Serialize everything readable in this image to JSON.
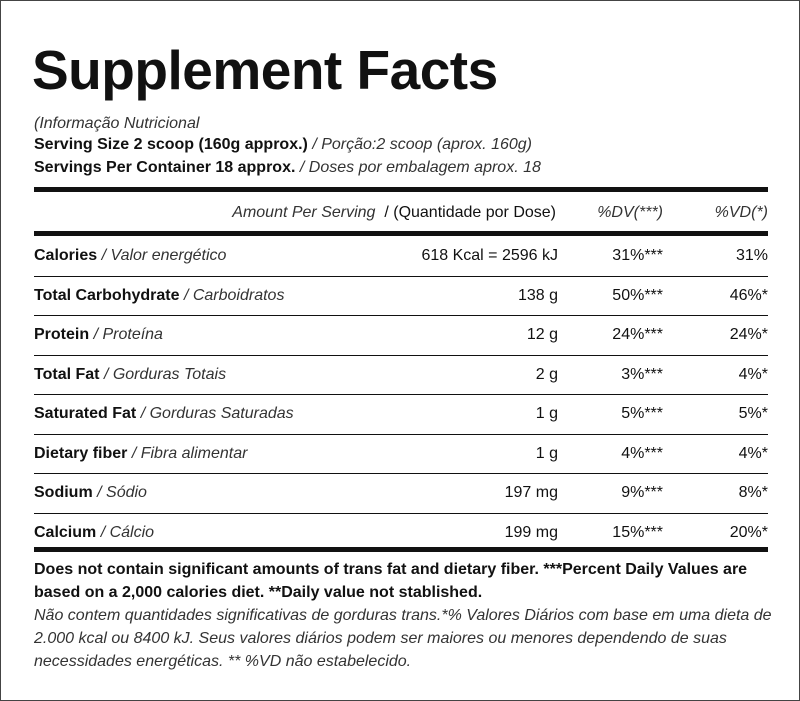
{
  "title": "Supplement Facts",
  "subtitle": "(Informação Nutricional",
  "serving_size": {
    "label": "Serving Size 2 scoop (160g approx.)",
    "translation": "/ Porção:2 scoop (aprox. 160g)"
  },
  "servings_per_container": {
    "label": "Servings Per Container 18 approx.",
    "translation": "/ Doses por embalagem aprox. 18"
  },
  "header": {
    "amount": "Amount Per Serving",
    "amount_pt": "/ (Quantidade por Dose)",
    "dv": "%DV(***)",
    "vd": "%VD(*)"
  },
  "rows": [
    {
      "name": "Calories",
      "name_pt": "/ Valor energético",
      "amount": "618 Kcal = 2596 kJ",
      "dv": "31%***",
      "vd": "31%"
    },
    {
      "name": "Total Carbohydrate",
      "name_pt": "/ Carboidratos",
      "amount": "138 g",
      "dv": "50%***",
      "vd": "46%*"
    },
    {
      "name": "Protein",
      "name_pt": "/ Proteína",
      "amount": "12 g",
      "dv": "24%***",
      "vd": "24%*"
    },
    {
      "name": "Total Fat",
      "name_pt": "/ Gorduras Totais",
      "amount": "2 g",
      "dv": "3%***",
      "vd": "4%*"
    },
    {
      "name": "Saturated Fat",
      "name_pt": "/ Gorduras Saturadas",
      "amount": "1 g",
      "dv": "5%***",
      "vd": "5%*"
    },
    {
      "name": "Dietary fiber",
      "name_pt": "/ Fibra alimentar",
      "amount": "1 g",
      "dv": "4%***",
      "vd": "4%*"
    },
    {
      "name": "Sodium",
      "name_pt": "/ Sódio",
      "amount": "197 mg",
      "dv": "9%***",
      "vd": "8%*"
    },
    {
      "name": "Calcium",
      "name_pt": "/ Cálcio",
      "amount": "199 mg",
      "dv": "15%***",
      "vd": "20%*"
    }
  ],
  "footnote_en": "Does not contain significant amounts of trans fat and dietary fiber. ***Percent Daily Values are based on a 2,000 calories diet. **Daily value not stablished.",
  "footnote_pt": "Não contem quantidades significativas de gorduras trans.*% Valores Diários com base em uma dieta de 2.000 kcal ou 8400 kJ. Seus valores diários podem ser maiores ou menores dependendo de suas necessidades energéticas. ** %VD não estabelecido."
}
